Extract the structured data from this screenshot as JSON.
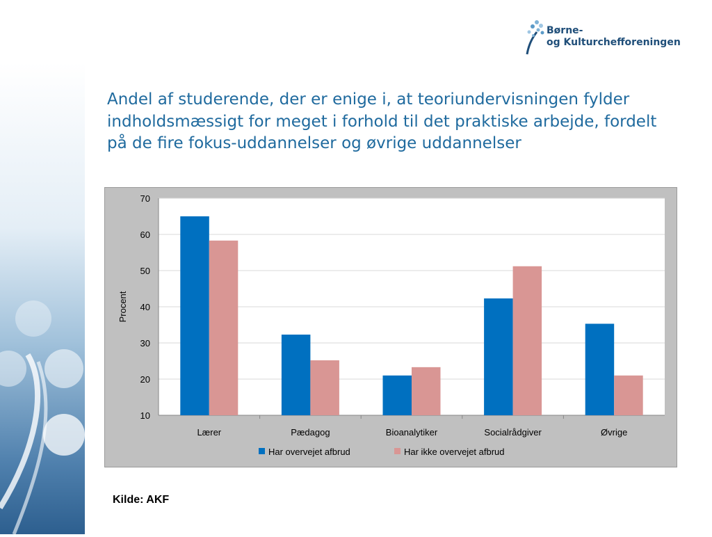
{
  "slide": {
    "title": "Andel af studerende, der er enige i, at teoriundervisningen fylder indholdsmæssigt for meget i forhold til det praktiske arbejde, fordelt på de fire fokus-uddannelser og øvrige uddannelser",
    "source": "Kilde: AKF"
  },
  "logo": {
    "line1": "Børne-",
    "line2": "og Kulturchefforeningen"
  },
  "colors": {
    "title": "#1f6a9e",
    "series1": "#0070c0",
    "series2": "#d99694",
    "chart_bg": "#c0c0c0",
    "plot_bg": "#ffffff"
  },
  "chart_data": {
    "type": "bar",
    "categories": [
      "Lærer",
      "Pædagog",
      "Bioanalytiker",
      "Socialrådgiver",
      "Øvrige"
    ],
    "series": [
      {
        "name": "Har overvejet afbrud",
        "values": [
          65,
          32.3,
          21,
          42.3,
          35.3
        ]
      },
      {
        "name": "Har ikke overvejet afbrud",
        "values": [
          58.3,
          25.2,
          23.3,
          51.2,
          21
        ]
      }
    ],
    "ylabel": "Procent",
    "xlabel": "",
    "ylim": [
      10,
      70
    ],
    "yticks": [
      10,
      20,
      30,
      40,
      50,
      60,
      70
    ],
    "grid": true,
    "legend": "bottom"
  }
}
